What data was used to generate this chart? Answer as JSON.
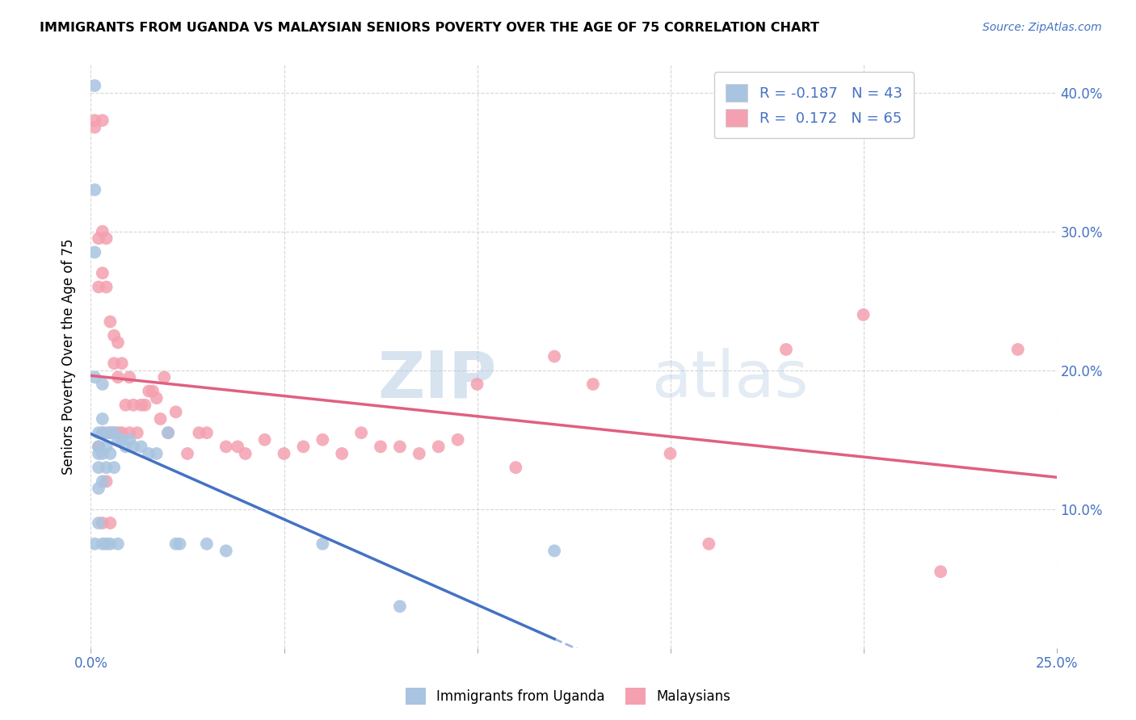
{
  "title": "IMMIGRANTS FROM UGANDA VS MALAYSIAN SENIORS POVERTY OVER THE AGE OF 75 CORRELATION CHART",
  "source": "Source: ZipAtlas.com",
  "ylabel": "Seniors Poverty Over the Age of 75",
  "xlim": [
    0,
    0.25
  ],
  "ylim": [
    0,
    0.42
  ],
  "R_uganda": -0.187,
  "N_uganda": 43,
  "R_malaysian": 0.172,
  "N_malaysian": 65,
  "color_uganda": "#a8c4e0",
  "color_malaysian": "#f4a0b0",
  "line_color_uganda": "#4472c4",
  "line_color_malaysian": "#e06080",
  "uganda_scatter_x": [
    0.001,
    0.001,
    0.001,
    0.001,
    0.001,
    0.002,
    0.002,
    0.002,
    0.002,
    0.002,
    0.002,
    0.003,
    0.003,
    0.003,
    0.003,
    0.003,
    0.003,
    0.004,
    0.004,
    0.004,
    0.004,
    0.005,
    0.005,
    0.005,
    0.006,
    0.006,
    0.007,
    0.007,
    0.008,
    0.009,
    0.01,
    0.011,
    0.013,
    0.015,
    0.017,
    0.02,
    0.022,
    0.023,
    0.03,
    0.035,
    0.06,
    0.08,
    0.12
  ],
  "uganda_scatter_y": [
    0.405,
    0.33,
    0.285,
    0.195,
    0.075,
    0.155,
    0.145,
    0.14,
    0.13,
    0.115,
    0.09,
    0.19,
    0.165,
    0.155,
    0.14,
    0.12,
    0.075,
    0.155,
    0.145,
    0.13,
    0.075,
    0.155,
    0.14,
    0.075,
    0.155,
    0.13,
    0.15,
    0.075,
    0.15,
    0.145,
    0.15,
    0.145,
    0.145,
    0.14,
    0.14,
    0.155,
    0.075,
    0.075,
    0.075,
    0.07,
    0.075,
    0.03,
    0.07
  ],
  "malaysian_scatter_x": [
    0.001,
    0.001,
    0.002,
    0.002,
    0.002,
    0.003,
    0.003,
    0.003,
    0.003,
    0.003,
    0.004,
    0.004,
    0.004,
    0.005,
    0.005,
    0.005,
    0.006,
    0.006,
    0.006,
    0.007,
    0.007,
    0.007,
    0.008,
    0.008,
    0.009,
    0.01,
    0.01,
    0.011,
    0.012,
    0.013,
    0.014,
    0.015,
    0.016,
    0.017,
    0.018,
    0.019,
    0.02,
    0.022,
    0.025,
    0.028,
    0.03,
    0.035,
    0.038,
    0.04,
    0.045,
    0.05,
    0.055,
    0.06,
    0.065,
    0.07,
    0.075,
    0.08,
    0.085,
    0.09,
    0.095,
    0.1,
    0.11,
    0.12,
    0.13,
    0.15,
    0.16,
    0.18,
    0.2,
    0.22,
    0.24
  ],
  "malaysian_scatter_y": [
    0.38,
    0.375,
    0.295,
    0.26,
    0.145,
    0.38,
    0.3,
    0.27,
    0.155,
    0.09,
    0.295,
    0.26,
    0.12,
    0.235,
    0.155,
    0.09,
    0.225,
    0.205,
    0.155,
    0.22,
    0.195,
    0.155,
    0.205,
    0.155,
    0.175,
    0.195,
    0.155,
    0.175,
    0.155,
    0.175,
    0.175,
    0.185,
    0.185,
    0.18,
    0.165,
    0.195,
    0.155,
    0.17,
    0.14,
    0.155,
    0.155,
    0.145,
    0.145,
    0.14,
    0.15,
    0.14,
    0.145,
    0.15,
    0.14,
    0.155,
    0.145,
    0.145,
    0.14,
    0.145,
    0.15,
    0.19,
    0.13,
    0.21,
    0.19,
    0.14,
    0.075,
    0.215,
    0.24,
    0.055,
    0.215
  ]
}
